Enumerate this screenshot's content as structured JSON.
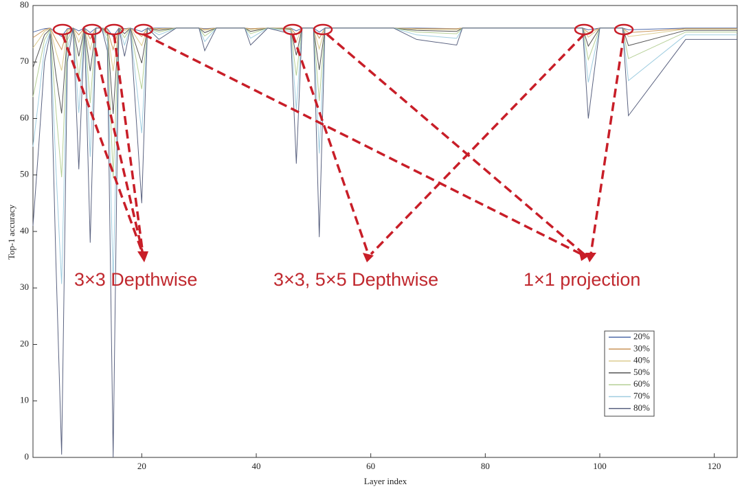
{
  "chart_data": {
    "type": "line",
    "xlabel": "Layer index",
    "ylabel": "Top-1 accuracy",
    "xlim": [
      1,
      124
    ],
    "ylim": [
      0,
      80
    ],
    "xticks": [
      20,
      40,
      60,
      80,
      100,
      120
    ],
    "yticks": [
      0,
      10,
      20,
      30,
      40,
      50,
      60,
      70,
      80
    ],
    "legend": "lower right",
    "annotations": [
      "3×3 Depthwise",
      "3×3, 5×5 Depthwise",
      "1×1 projection"
    ],
    "x": [
      1,
      2,
      3,
      4,
      5,
      6,
      7,
      8,
      9,
      10,
      11,
      12,
      13,
      14,
      15,
      16,
      17,
      18,
      20,
      21,
      23,
      26,
      30,
      31,
      33,
      38,
      39,
      42,
      46,
      47,
      48,
      50,
      51,
      52,
      55,
      64,
      68,
      75,
      76,
      80,
      90,
      97,
      98,
      100,
      104,
      105,
      115,
      124
    ],
    "series": [
      {
        "name": "20%",
        "color": "#4f6aa8",
        "values": [
          75.3,
          75.6,
          75.9,
          76,
          75.2,
          74.5,
          75.9,
          76,
          75.5,
          76,
          75.2,
          76,
          76,
          75.9,
          74.5,
          76,
          75.9,
          76,
          75.4,
          76,
          76,
          76,
          76,
          75.9,
          76,
          76,
          75.9,
          76,
          76,
          75.5,
          76,
          76,
          75.3,
          76,
          76,
          76,
          76,
          75.9,
          76,
          76,
          76,
          76,
          75.7,
          76,
          76,
          75.7,
          76,
          76
        ]
      },
      {
        "name": "30%",
        "color": "#c9955a",
        "values": [
          74.3,
          75,
          75.7,
          76,
          74,
          72.2,
          75.7,
          76,
          74.8,
          76,
          74.1,
          76,
          76,
          75.8,
          72.2,
          76,
          75.8,
          76,
          74.5,
          76,
          75.9,
          76,
          76,
          75.8,
          76,
          76,
          75.9,
          76,
          76,
          74.8,
          76,
          76,
          74.2,
          76,
          76,
          76,
          75.9,
          75.9,
          76,
          76,
          76,
          76,
          75.2,
          76,
          76,
          75.2,
          75.9,
          75.9
        ]
      },
      {
        "name": "40%",
        "color": "#dccb8e",
        "values": [
          72.5,
          73.9,
          75.4,
          75.9,
          71.9,
          68.5,
          75.4,
          76,
          73.5,
          76,
          72.2,
          76,
          76,
          75.6,
          68.4,
          76,
          75.5,
          76,
          72.9,
          76,
          75.8,
          76,
          76,
          75.6,
          76,
          76,
          75.7,
          76,
          75.9,
          73.6,
          76,
          76,
          72.3,
          76,
          76,
          76,
          75.8,
          75.7,
          76,
          76,
          76,
          76,
          74.4,
          76,
          76,
          74.5,
          75.8,
          75.8
        ]
      },
      {
        "name": "50%",
        "color": "#555555",
        "values": [
          69,
          71.8,
          74.8,
          75.8,
          67.8,
          60.9,
          74.8,
          76,
          71,
          76,
          68.4,
          76,
          76,
          75.2,
          60.8,
          76,
          75,
          76,
          69.8,
          76,
          75.6,
          76,
          76,
          75.2,
          76,
          76,
          75.4,
          76,
          75.8,
          71.2,
          76,
          76,
          68.6,
          76,
          76,
          76,
          75.6,
          75.4,
          76,
          76,
          76,
          76,
          72.8,
          76,
          76,
          72.9,
          75.6,
          75.6
        ]
      },
      {
        "name": "60%",
        "color": "#b5cf95",
        "values": [
          63.8,
          68.7,
          73.9,
          75.7,
          61.7,
          49.6,
          73.9,
          76,
          67.3,
          76,
          62.7,
          76,
          76,
          74.6,
          49.4,
          76,
          74.3,
          76,
          65.2,
          76,
          75.3,
          76,
          76,
          74.6,
          76,
          76,
          75,
          76,
          75.7,
          67.6,
          76,
          76,
          63.1,
          76,
          76,
          76,
          75.3,
          75,
          76,
          76,
          76,
          76,
          70.4,
          76,
          76,
          70.6,
          75.3,
          75.3
        ]
      },
      {
        "name": "70%",
        "color": "#9fcde0",
        "values": [
          55,
          63.4,
          72.4,
          75.4,
          51.4,
          30.7,
          72.4,
          76,
          61,
          76,
          53.2,
          76,
          76,
          73.6,
          30.4,
          76,
          73,
          76,
          57.4,
          76,
          74.8,
          76,
          76,
          73.6,
          76,
          76,
          74.2,
          76,
          75.4,
          61.6,
          76,
          76,
          53.8,
          76,
          76,
          76,
          74.8,
          74.2,
          76,
          76,
          76,
          76,
          66.4,
          76,
          76,
          66.7,
          74.8,
          74.8
        ]
      },
      {
        "name": "80%",
        "color": "#5a6280",
        "values": [
          41,
          55,
          70,
          75,
          35,
          0.5,
          70,
          76,
          51,
          76,
          38,
          76,
          76,
          72,
          0,
          76,
          71,
          76,
          45,
          76,
          74,
          76,
          76,
          72,
          76,
          76,
          73,
          76,
          75,
          52,
          76,
          76,
          39,
          76,
          76,
          76,
          74,
          73,
          76,
          76,
          76,
          76,
          60,
          76,
          76,
          60.5,
          74,
          74
        ]
      }
    ]
  }
}
